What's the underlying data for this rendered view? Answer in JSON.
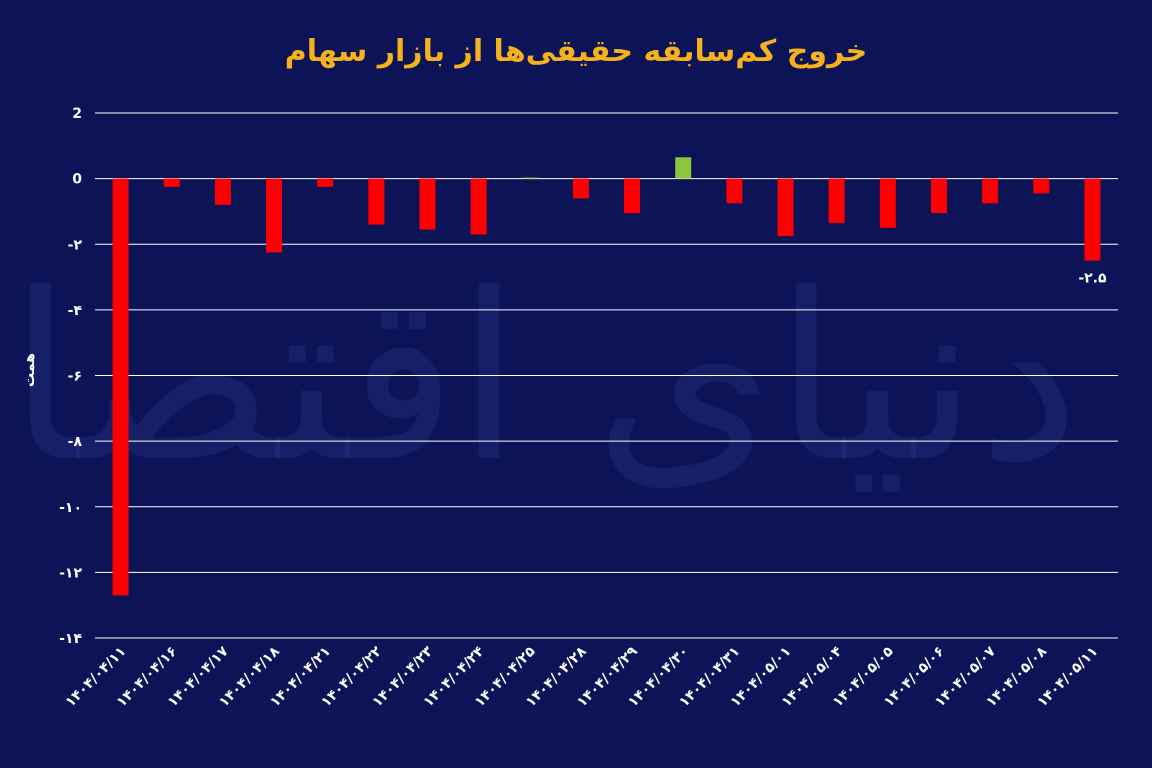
{
  "title": "خروج کم‌سابقه حقیقی‌ها از بازار سهام",
  "watermark": "دنیای اقتصاد",
  "chart_data": {
    "type": "bar",
    "title": "خروج کم‌سابقه حقیقی‌ها از بازار سهام",
    "ylabel": "همت",
    "xlabel": "",
    "ylim": [
      -14,
      2
    ],
    "yticks": [
      2,
      0,
      -2,
      -4,
      -6,
      -8,
      -10,
      -12,
      -14
    ],
    "ytick_labels": [
      "2",
      "0",
      "-۲",
      "-۴",
      "-۶",
      "-۸",
      "-۱۰",
      "-۱۲",
      "-۱۴"
    ],
    "grid": true,
    "categories": [
      "۱۴۰۴/۰۴/۱۱",
      "۱۴۰۴/۰۴/۱۶",
      "۱۴۰۴/۰۴/۱۷",
      "۱۴۰۴/۰۴/۱۸",
      "۱۴۰۴/۰۴/۲۱",
      "۱۴۰۴/۰۴/۲۲",
      "۱۴۰۴/۰۴/۲۳",
      "۱۴۰۴/۰۴/۲۴",
      "۱۴۰۴/۰۴/۲۵",
      "۱۴۰۴/۰۴/۲۸",
      "۱۴۰۴/۰۴/۲۹",
      "۱۴۰۴/۰۴/۳۰",
      "۱۴۰۴/۰۴/۳۱",
      "۱۴۰۴/۰۵/۰۱",
      "۱۴۰۴/۰۵/۰۴",
      "۱۴۰۴/۰۵/۰۵",
      "۱۴۰۴/۰۵/۰۶",
      "۱۴۰۴/۰۵/۰۷",
      "۱۴۰۴/۰۵/۰۸",
      "۱۴۰۴/۰۵/۱۱"
    ],
    "values": [
      -12.7,
      -0.25,
      -0.8,
      -2.25,
      -0.25,
      -1.4,
      -1.55,
      -1.7,
      0.03,
      -0.6,
      -1.05,
      0.65,
      -0.75,
      -1.75,
      -1.35,
      -1.5,
      -1.05,
      -0.75,
      -0.45,
      -2.5
    ],
    "data_labels": [
      {
        "index": 19,
        "text": "-۲.۵"
      }
    ],
    "colors": {
      "negative": "#ff0000",
      "positive": "#8cc63f",
      "background": "#0c1457",
      "grid": "#ffffff",
      "title": "#f5b21c",
      "text": "#ffffff"
    }
  }
}
